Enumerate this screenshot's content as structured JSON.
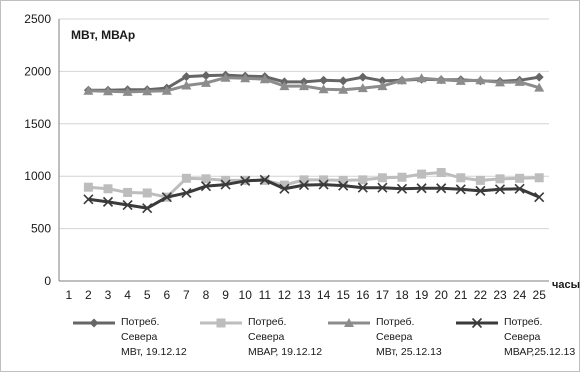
{
  "chart_data": {
    "type": "line",
    "title": "",
    "ylabel": "МВт, МВАр",
    "xlabel": "часы",
    "ylim": [
      0,
      2500
    ],
    "yticks": [
      0,
      500,
      1000,
      1500,
      2000,
      2500
    ],
    "x": [
      1,
      2,
      3,
      4,
      5,
      6,
      7,
      8,
      9,
      10,
      11,
      12,
      13,
      14,
      15,
      16,
      17,
      18,
      19,
      20,
      21,
      22,
      23,
      24,
      25
    ],
    "grid": true,
    "legend": "bottom",
    "series": [
      {
        "name": "Потреб. Севера МВт, 19.12.12",
        "label_lines": [
          "Потреб.",
          "Севера",
          "МВт, 19.12.12"
        ],
        "color": "#666666",
        "marker": "diamond",
        "values": [
          null,
          1820,
          1820,
          1825,
          1825,
          1840,
          1950,
          1960,
          1965,
          1955,
          1950,
          1900,
          1900,
          1915,
          1910,
          1945,
          1910,
          1915,
          1925,
          1920,
          1920,
          1910,
          1905,
          1915,
          1945
        ]
      },
      {
        "name": "Потреб. Севера МВАР, 19.12.12",
        "label_lines": [
          "Потреб.",
          "Севера",
          "МВАР, 19.12.12"
        ],
        "color": "#bdbdbd",
        "marker": "square",
        "values": [
          null,
          895,
          880,
          845,
          840,
          800,
          980,
          975,
          960,
          960,
          960,
          915,
          965,
          965,
          960,
          965,
          985,
          990,
          1020,
          1035,
          985,
          960,
          975,
          980,
          985
        ]
      },
      {
        "name": "Потреб. Севера МВт, 25.12.13",
        "label_lines": [
          "Потреб.",
          "Севера",
          "МВт, 25.12.13"
        ],
        "color": "#8c8c8c",
        "marker": "triangle",
        "values": [
          null,
          1815,
          1810,
          1805,
          1810,
          1815,
          1865,
          1890,
          1940,
          1935,
          1925,
          1860,
          1860,
          1830,
          1825,
          1840,
          1860,
          1915,
          1935,
          1920,
          1910,
          1915,
          1895,
          1900,
          1845
        ]
      },
      {
        "name": "Потреб. Севера МВАР,25.12.13",
        "label_lines": [
          "Потреб.",
          "Севера",
          "МВАР,25.12.13"
        ],
        "color": "#3a3a3a",
        "marker": "x",
        "values": [
          null,
          780,
          755,
          725,
          695,
          800,
          840,
          905,
          920,
          955,
          965,
          880,
          915,
          920,
          910,
          890,
          890,
          880,
          885,
          885,
          875,
          860,
          875,
          880,
          800
        ]
      }
    ]
  }
}
